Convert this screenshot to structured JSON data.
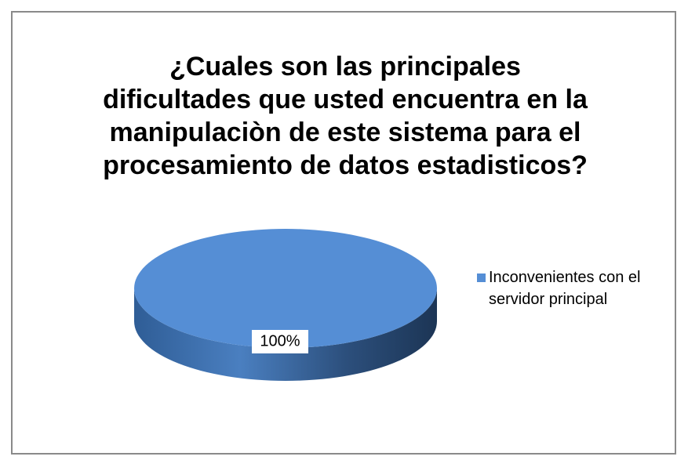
{
  "chart_data": {
    "type": "pie",
    "title": [
      "¿Cuales son las principales",
      "dificultades que usted encuentra en la",
      "manipulaciòn de este sistema para el",
      "procesamiento de datos estadisticos?"
    ],
    "categories": [
      "Inconvenientes con el servidor principal"
    ],
    "values": [
      100
    ],
    "value_labels": [
      "100%"
    ],
    "colors": [
      "#558ed5"
    ],
    "legend": "right"
  }
}
